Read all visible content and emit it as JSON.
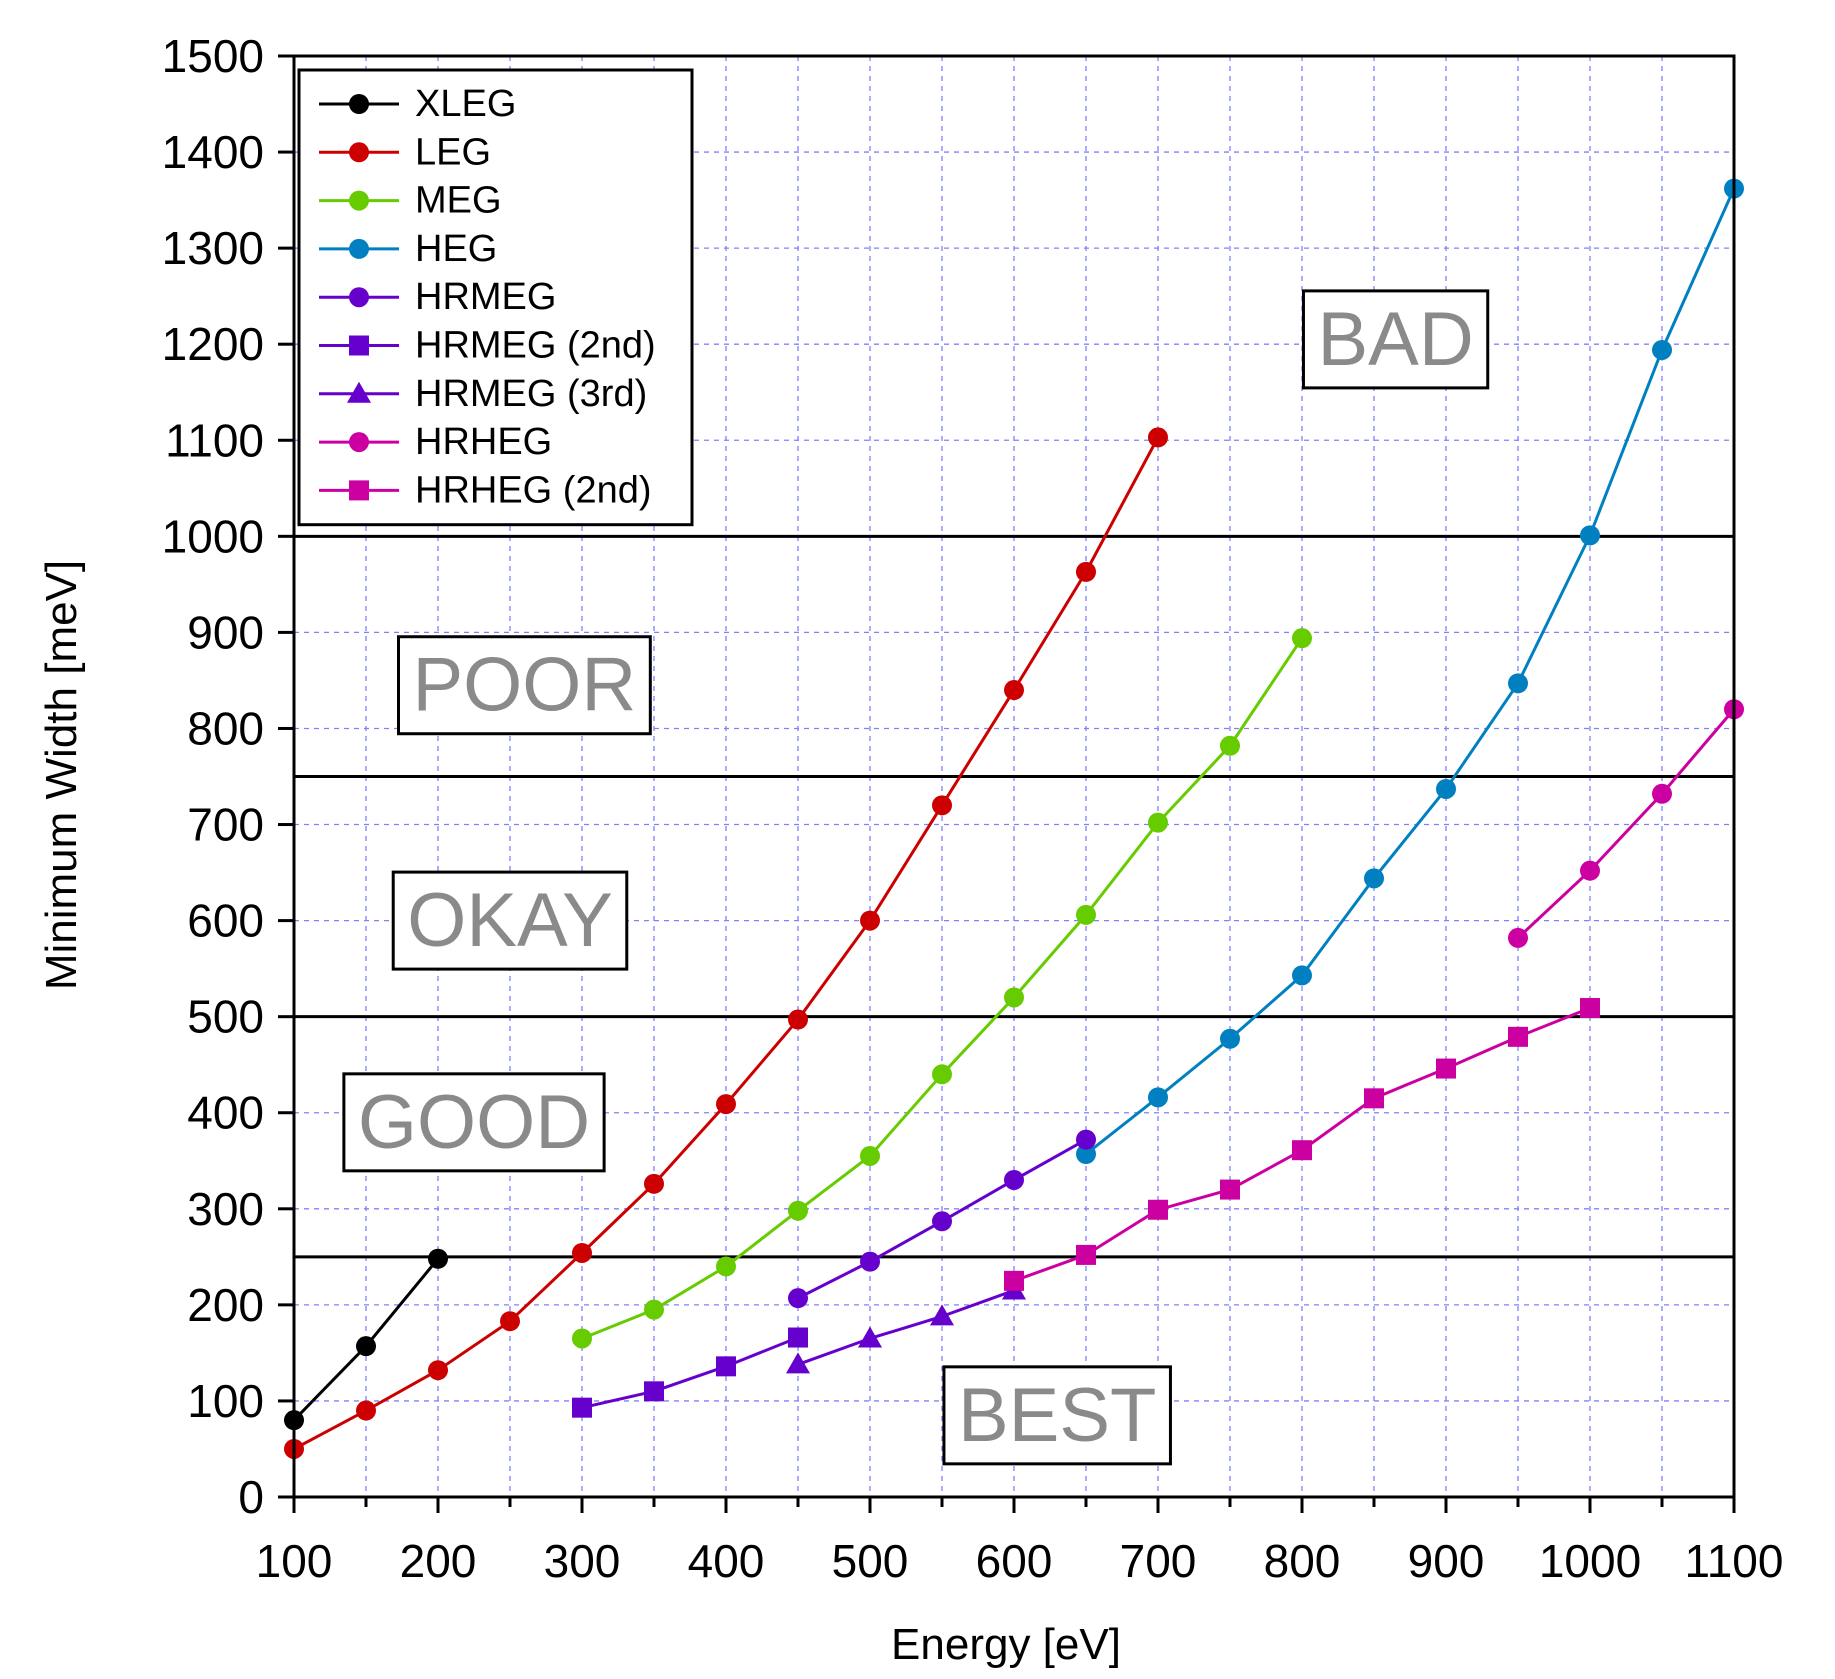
{
  "chart_data": {
    "type": "line",
    "title": "",
    "xlabel": "Energy [eV]",
    "ylabel": "Minimum Width [meV]",
    "xlim": [
      100,
      1100
    ],
    "ylim": [
      0,
      1500
    ],
    "xticks": [
      100,
      200,
      300,
      400,
      500,
      600,
      700,
      800,
      900,
      1000,
      1100
    ],
    "xticks_minor_step": 50,
    "yticks": [
      0,
      100,
      200,
      300,
      400,
      500,
      600,
      700,
      800,
      900,
      1000,
      1100,
      1200,
      1300,
      1400,
      1500
    ],
    "grid": "dashed blue minor grid every 50 eV and 100 meV",
    "legend_position": "top-left",
    "thresholds": [
      250,
      500,
      750,
      1000
    ],
    "zones": [
      {
        "label": "BEST",
        "x": 630,
        "y": 85
      },
      {
        "label": "GOOD",
        "x": 225,
        "y": 390
      },
      {
        "label": "OKAY",
        "x": 250,
        "y": 600
      },
      {
        "label": "POOR",
        "x": 260,
        "y": 845
      },
      {
        "label": "BAD",
        "x": 865,
        "y": 1205
      }
    ],
    "series": [
      {
        "name": "XLEG",
        "color": "#000000",
        "marker": "circle",
        "points": [
          [
            100,
            80
          ],
          [
            150,
            157
          ],
          [
            200,
            248
          ]
        ]
      },
      {
        "name": "LEG",
        "color": "#cc0000",
        "marker": "circle",
        "points": [
          [
            100,
            50
          ],
          [
            150,
            90
          ],
          [
            200,
            132
          ],
          [
            250,
            183
          ],
          [
            300,
            254
          ],
          [
            350,
            326
          ],
          [
            400,
            409
          ],
          [
            450,
            497
          ],
          [
            500,
            600
          ],
          [
            550,
            720
          ],
          [
            600,
            840
          ],
          [
            650,
            963
          ],
          [
            700,
            1103
          ]
        ]
      },
      {
        "name": "MEG",
        "color": "#66cc00",
        "marker": "circle",
        "points": [
          [
            300,
            165
          ],
          [
            350,
            195
          ],
          [
            400,
            240
          ],
          [
            450,
            298
          ],
          [
            500,
            355
          ],
          [
            550,
            440
          ],
          [
            600,
            520
          ],
          [
            650,
            606
          ],
          [
            700,
            702
          ],
          [
            750,
            782
          ],
          [
            800,
            894
          ]
        ]
      },
      {
        "name": "HEG",
        "color": "#0080c0",
        "marker": "circle",
        "points": [
          [
            650,
            357
          ],
          [
            700,
            416
          ],
          [
            750,
            477
          ],
          [
            800,
            543
          ],
          [
            850,
            644
          ],
          [
            900,
            737
          ],
          [
            950,
            847
          ],
          [
            1000,
            1001
          ],
          [
            1050,
            1194
          ],
          [
            1100,
            1362
          ]
        ]
      },
      {
        "name": "HRMEG",
        "color": "#6600cc",
        "marker": "circle",
        "points": [
          [
            450,
            207
          ],
          [
            500,
            245
          ],
          [
            550,
            287
          ],
          [
            600,
            330
          ],
          [
            650,
            372
          ]
        ]
      },
      {
        "name": "HRMEG (2nd)",
        "color": "#6600cc",
        "marker": "square",
        "points": [
          [
            300,
            93
          ],
          [
            350,
            110
          ],
          [
            400,
            136
          ],
          [
            450,
            166
          ]
        ]
      },
      {
        "name": "HRMEG (3rd)",
        "color": "#6600cc",
        "marker": "triangle",
        "points": [
          [
            450,
            138
          ],
          [
            500,
            165
          ],
          [
            550,
            188
          ],
          [
            600,
            215
          ]
        ]
      },
      {
        "name": "HRHEG",
        "color": "#cc00a0",
        "marker": "circle",
        "points": [
          [
            950,
            582
          ],
          [
            1000,
            652
          ],
          [
            1050,
            732
          ],
          [
            1100,
            820
          ]
        ]
      },
      {
        "name": "HRHEG (2nd)",
        "color": "#cc00a0",
        "marker": "square",
        "points": [
          [
            600,
            225
          ],
          [
            650,
            252
          ],
          [
            700,
            299
          ],
          [
            750,
            320
          ],
          [
            800,
            361
          ],
          [
            850,
            415
          ],
          [
            900,
            446
          ],
          [
            950,
            479
          ],
          [
            1000,
            509
          ]
        ]
      }
    ]
  }
}
